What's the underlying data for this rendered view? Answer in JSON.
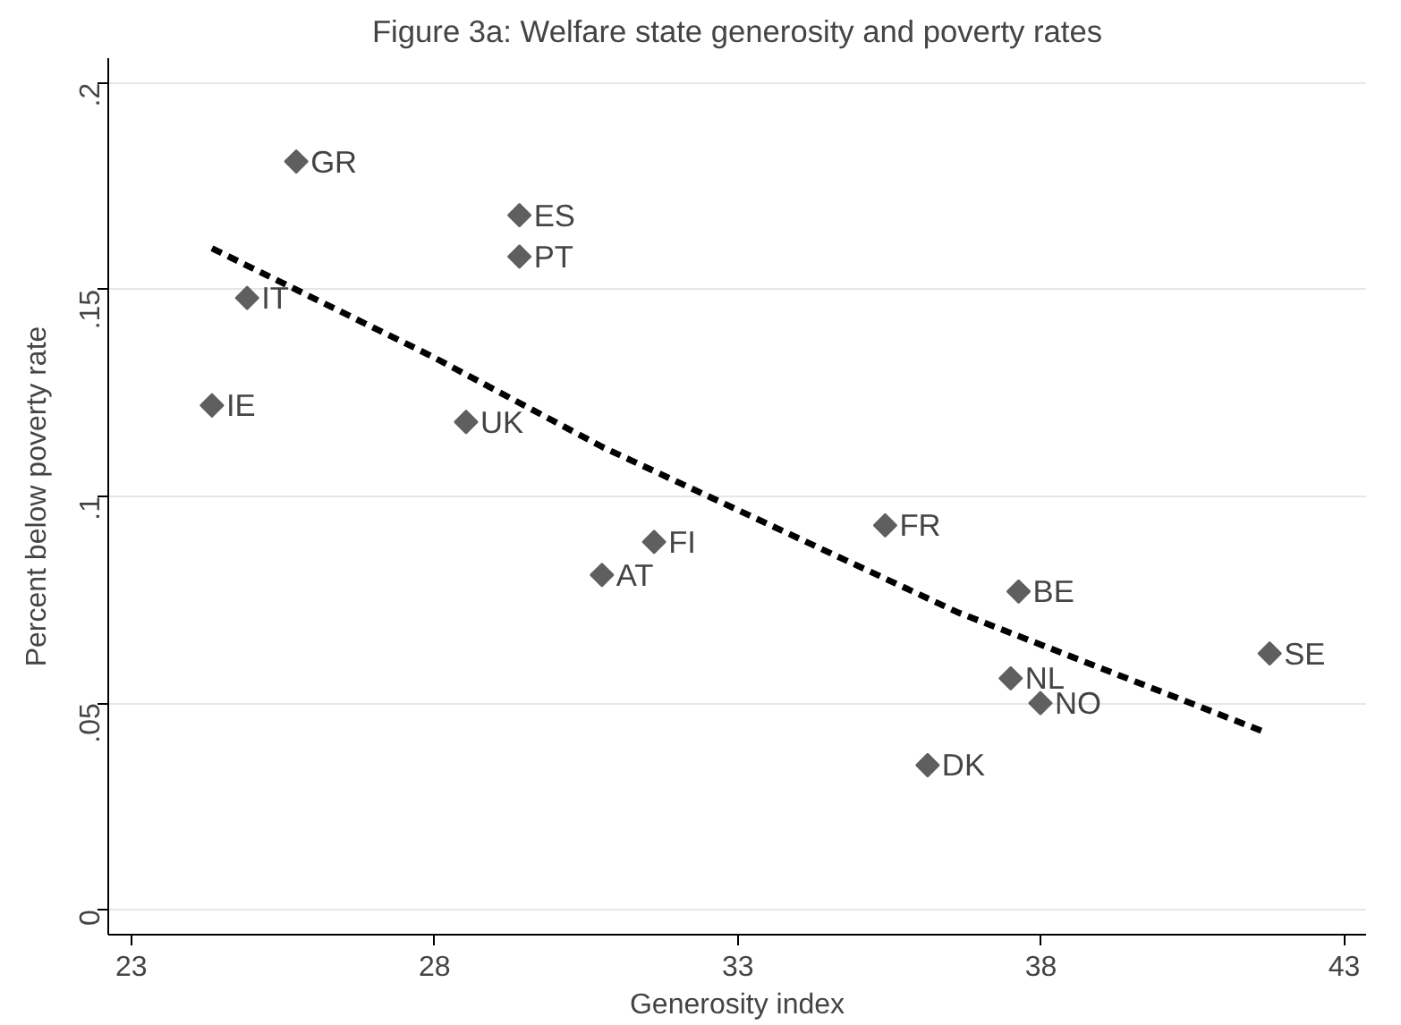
{
  "chart_data": {
    "type": "scatter",
    "title": "Figure 3a: Welfare state generosity and poverty rates",
    "xlabel": "Generosity index",
    "ylabel": "Percent below poverty rate",
    "xlim": [
      22.62,
      43.36
    ],
    "ylim": [
      -0.006,
      0.206
    ],
    "xticks": [
      23,
      28,
      33,
      38,
      43
    ],
    "yticks": [
      {
        "value": 0,
        "label": "0"
      },
      {
        "value": 0.05,
        "label": ".05"
      },
      {
        "value": 0.1,
        "label": ".1"
      },
      {
        "value": 0.15,
        "label": ".15"
      },
      {
        "value": 0.2,
        "label": ".2"
      }
    ],
    "grid": "y",
    "series": [
      {
        "color": "#5f5f5f",
        "marker": "diamond",
        "x": [
          25.72,
          24.91,
          24.33,
          29.4,
          29.4,
          28.52,
          31.62,
          30.76,
          35.43,
          37.63,
          41.77,
          37.5,
          37.99,
          36.13
        ],
        "values": [
          0.181,
          0.148,
          0.122,
          0.168,
          0.158,
          0.118,
          0.089,
          0.081,
          0.093,
          0.077,
          0.062,
          0.056,
          0.05,
          0.035
        ]
      },
      {
        "type": "line",
        "color": "#000000",
        "line_style": "dashed",
        "marker": "none",
        "x": [
          24.33,
          27.94,
          30.76,
          36.62,
          41.69
        ],
        "values": [
          0.16,
          0.134,
          0.112,
          0.072,
          0.043
        ]
      }
    ],
    "annotations": [
      {
        "text": "GR",
        "x": 25.72,
        "y": 0.181
      },
      {
        "text": "IT",
        "x": 24.91,
        "y": 0.148
      },
      {
        "text": "IE",
        "x": 24.33,
        "y": 0.122
      },
      {
        "text": "ES",
        "x": 29.4,
        "y": 0.168
      },
      {
        "text": "PT",
        "x": 29.4,
        "y": 0.158
      },
      {
        "text": "UK",
        "x": 28.52,
        "y": 0.118
      },
      {
        "text": "FI",
        "x": 31.62,
        "y": 0.089
      },
      {
        "text": "AT",
        "x": 30.76,
        "y": 0.081
      },
      {
        "text": "FR",
        "x": 35.43,
        "y": 0.093
      },
      {
        "text": "BE",
        "x": 37.63,
        "y": 0.077
      },
      {
        "text": "SE",
        "x": 41.77,
        "y": 0.062
      },
      {
        "text": "NL",
        "x": 37.5,
        "y": 0.056
      },
      {
        "text": "NO",
        "x": 37.99,
        "y": 0.05
      },
      {
        "text": "DK",
        "x": 36.13,
        "y": 0.035
      }
    ]
  }
}
